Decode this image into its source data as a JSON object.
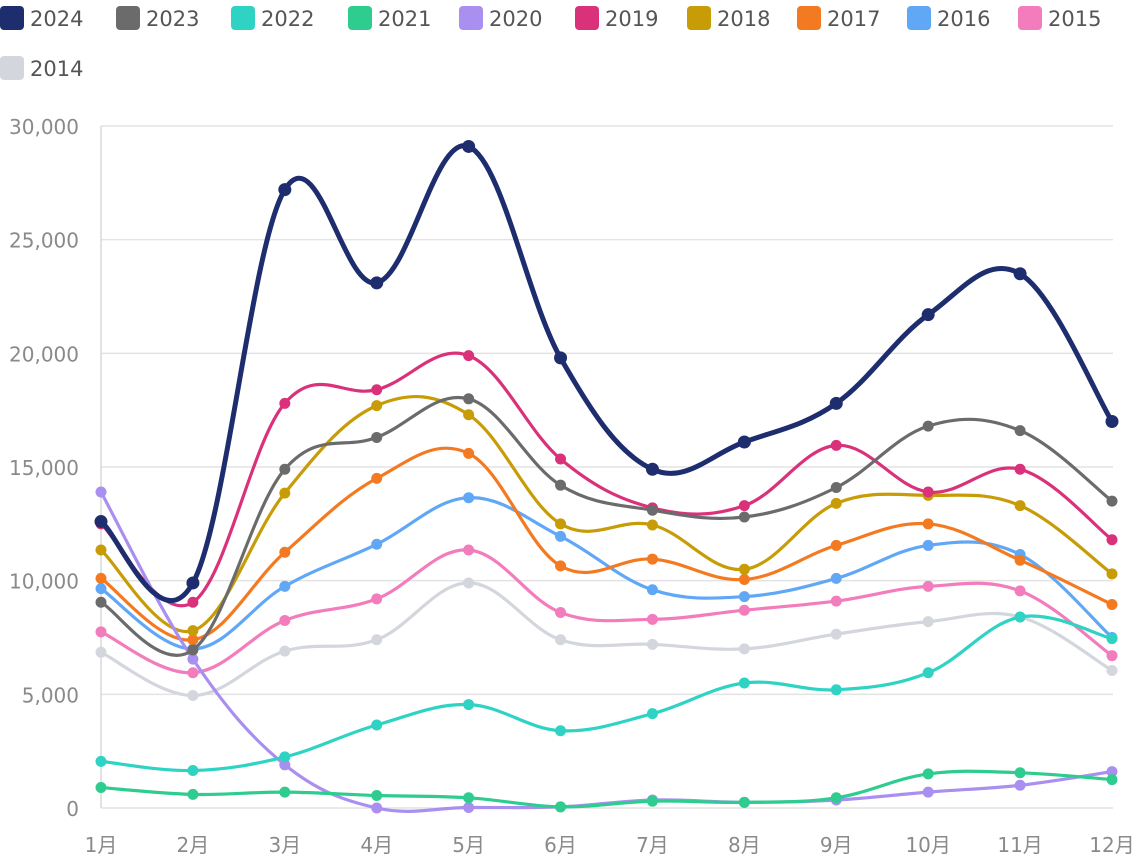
{
  "chart_data": {
    "type": "line",
    "title": "",
    "xlabel": "",
    "ylabel": "",
    "categories": [
      "1月",
      "2月",
      "3月",
      "4月",
      "5月",
      "6月",
      "7月",
      "8月",
      "9月",
      "10月",
      "11月",
      "12月"
    ],
    "ylim": [
      0,
      30000
    ],
    "yticks": [
      0,
      5000,
      10000,
      15000,
      20000,
      25000,
      30000
    ],
    "ytick_labels": [
      "0",
      "5,000",
      "10,000",
      "15,000",
      "20,000",
      "25,000",
      "30,000"
    ],
    "grid": true,
    "legend_position": "top-left",
    "series": [
      {
        "name": "2024",
        "color": "#1e2d6e",
        "values": [
          12600,
          9900,
          27200,
          23100,
          29100,
          19800,
          14900,
          16100,
          17800,
          21700,
          23500,
          17000
        ]
      },
      {
        "name": "2023",
        "color": "#6b6b6b",
        "values": [
          9050,
          6950,
          14900,
          16300,
          18000,
          14200,
          13100,
          12800,
          14100,
          16800,
          16600,
          13500
        ]
      },
      {
        "name": "2022",
        "color": "#2ed3c4",
        "values": [
          2050,
          1650,
          2250,
          3650,
          4550,
          3400,
          4150,
          5500,
          5200,
          5950,
          8400,
          7450
        ]
      },
      {
        "name": "2021",
        "color": "#2ecc8f",
        "values": [
          900,
          600,
          700,
          550,
          450,
          50,
          300,
          250,
          450,
          1500,
          1550,
          1250
        ]
      },
      {
        "name": "2020",
        "color": "#a98ff0",
        "values": [
          13900,
          6550,
          1900,
          0,
          20,
          50,
          350,
          250,
          350,
          700,
          1000,
          1600
        ]
      },
      {
        "name": "2019",
        "color": "#d9327a",
        "values": [
          12500,
          9050,
          17800,
          18400,
          19900,
          15350,
          13200,
          13300,
          15950,
          13900,
          14900,
          11800
        ]
      },
      {
        "name": "2018",
        "color": "#c79c07",
        "values": [
          11350,
          7800,
          13850,
          17700,
          17300,
          12500,
          12450,
          10500,
          13400,
          13750,
          13300,
          10300
        ]
      },
      {
        "name": "2017",
        "color": "#f47a22",
        "values": [
          10100,
          7400,
          11250,
          14500,
          15600,
          10650,
          10950,
          10050,
          11550,
          12500,
          10900,
          8950
        ]
      },
      {
        "name": "2016",
        "color": "#60a8f6",
        "values": [
          9650,
          7000,
          9750,
          11600,
          13650,
          11950,
          9600,
          9300,
          10100,
          11550,
          11150,
          7500
        ]
      },
      {
        "name": "2015",
        "color": "#f37cbd",
        "values": [
          7750,
          5950,
          8250,
          9200,
          11350,
          8600,
          8300,
          8700,
          9100,
          9750,
          9550,
          6700
        ]
      },
      {
        "name": "2014",
        "color": "#d3d6dc",
        "values": [
          6850,
          4950,
          6900,
          7400,
          9900,
          7400,
          7200,
          7000,
          7650,
          8200,
          8400,
          6050
        ]
      }
    ]
  }
}
